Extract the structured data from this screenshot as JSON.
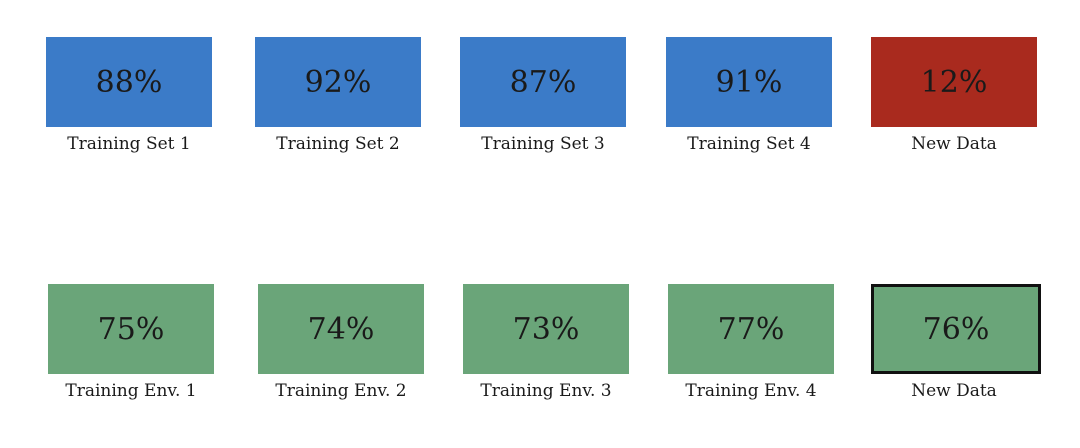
{
  "rows": [
    {
      "items": [
        {
          "value": "88%",
          "label": "Training Set 1"
        },
        {
          "value": "92%",
          "label": "Training Set 2"
        },
        {
          "value": "87%",
          "label": "Training Set 3"
        },
        {
          "value": "91%",
          "label": "Training Set 4"
        },
        {
          "value": "12%",
          "label": "New Data"
        }
      ]
    },
    {
      "items": [
        {
          "value": "75%",
          "label": "Training Env. 1"
        },
        {
          "value": "74%",
          "label": "Training Env. 2"
        },
        {
          "value": "73%",
          "label": "Training Env. 3"
        },
        {
          "value": "77%",
          "label": "Training Env. 4"
        },
        {
          "value": "76%",
          "label": "New Data"
        }
      ]
    }
  ]
}
